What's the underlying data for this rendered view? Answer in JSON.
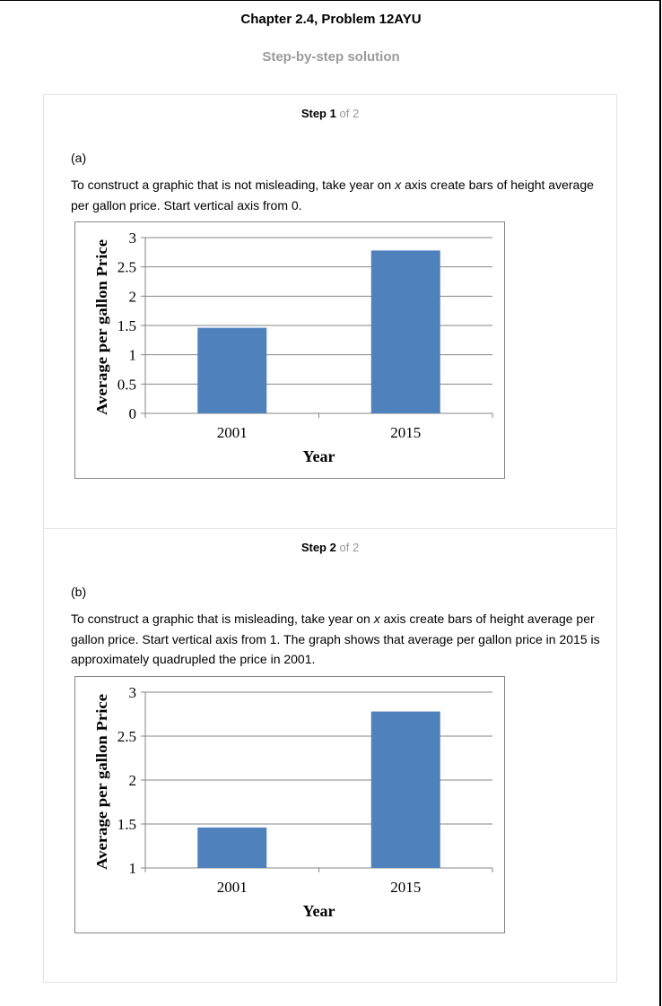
{
  "page": {
    "heading": "Chapter 2.4, Problem 12AYU",
    "subheading": "Step-by-step solution"
  },
  "steps": [
    {
      "step_word": "Step",
      "number": "1",
      "of_text": "of 2",
      "part_label": "(a)",
      "paragraph": [
        {
          "text": "To construct a graphic that is not misleading, take year on "
        },
        {
          "text": "x",
          "italic": true
        },
        {
          "text": " axis create bars of height average per gallon price. Start vertical axis from 0."
        }
      ]
    },
    {
      "step_word": "Step",
      "number": "2",
      "of_text": "of 2",
      "part_label": "(b)",
      "paragraph": [
        {
          "text": "To construct a graphic that is misleading, take year on "
        },
        {
          "text": "x",
          "italic": true
        },
        {
          "text": " axis create bars of height average per gallon price. Start vertical axis from 1. The graph shows that average per gallon price in 2015 is approximately quadrupled the price in 2001."
        }
      ]
    }
  ],
  "colors": {
    "bar": "#4f81bd",
    "grid": "#868686",
    "muted": "#999999"
  },
  "chart_data": [
    {
      "type": "bar",
      "categories": [
        "2001",
        "2015"
      ],
      "values": [
        1.46,
        2.78
      ],
      "xlabel": "Year",
      "ylabel": "Average per gallon Price",
      "ylim": [
        0,
        3
      ],
      "yticks": [
        0,
        0.5,
        1,
        1.5,
        2,
        2.5,
        3
      ],
      "ytick_labels": [
        "0",
        "0.5",
        "1",
        "1.5",
        "2",
        "2.5",
        "3"
      ],
      "grid": true,
      "legend": "none"
    },
    {
      "type": "bar",
      "categories": [
        "2001",
        "2015"
      ],
      "values": [
        1.46,
        2.78
      ],
      "xlabel": "Year",
      "ylabel": "Average per gallon Price",
      "ylim": [
        1,
        3
      ],
      "yticks": [
        1,
        1.5,
        2,
        2.5,
        3
      ],
      "ytick_labels": [
        "1",
        "1.5",
        "2",
        "2.5",
        "3"
      ],
      "grid": true,
      "legend": "none"
    }
  ]
}
